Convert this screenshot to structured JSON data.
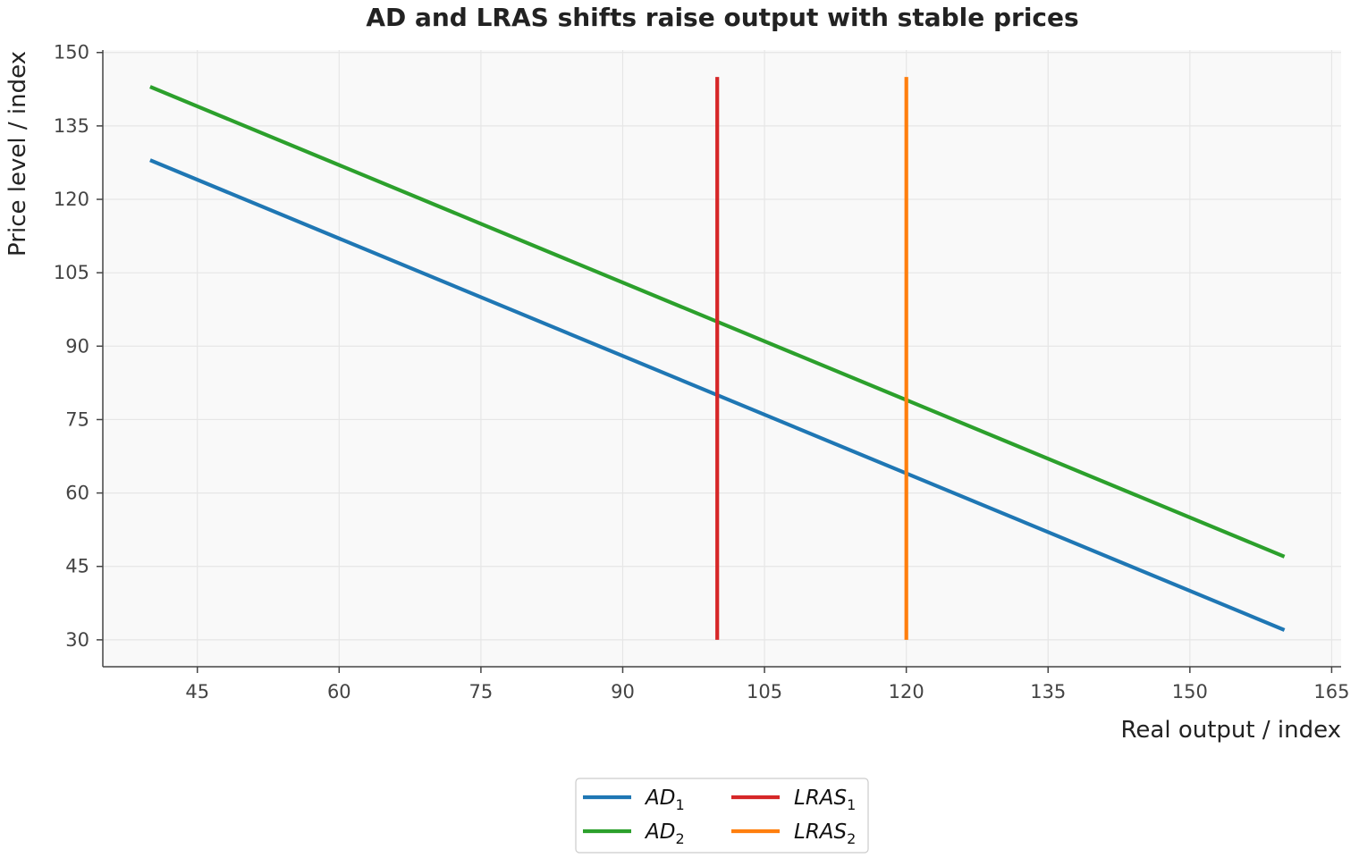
{
  "chart_data": {
    "type": "line",
    "title": "AD and LRAS shifts raise output with stable prices",
    "xlabel": "Real output / index",
    "ylabel": "Price level / index",
    "xlim": [
      35,
      166
    ],
    "ylim": [
      24.5,
      150.5
    ],
    "xticks": [
      45,
      60,
      75,
      90,
      105,
      120,
      135,
      150,
      165
    ],
    "yticks": [
      30,
      45,
      60,
      75,
      90,
      105,
      120,
      135,
      150
    ],
    "grid": true,
    "legend_position": "bottom-center",
    "legend_columns": 2,
    "series": [
      {
        "name": "AD",
        "subscript": "1",
        "color": "#1f77b4",
        "x": [
          40,
          160
        ],
        "y": [
          128,
          32
        ]
      },
      {
        "name": "AD",
        "subscript": "2",
        "color": "#2ca02c",
        "x": [
          40,
          160
        ],
        "y": [
          143,
          47
        ]
      },
      {
        "name": "LRAS",
        "subscript": "1",
        "color": "#d62728",
        "x": [
          100,
          100
        ],
        "y": [
          30,
          145
        ]
      },
      {
        "name": "LRAS",
        "subscript": "2",
        "color": "#ff7f0e",
        "x": [
          120,
          120
        ],
        "y": [
          30,
          145
        ]
      }
    ]
  }
}
